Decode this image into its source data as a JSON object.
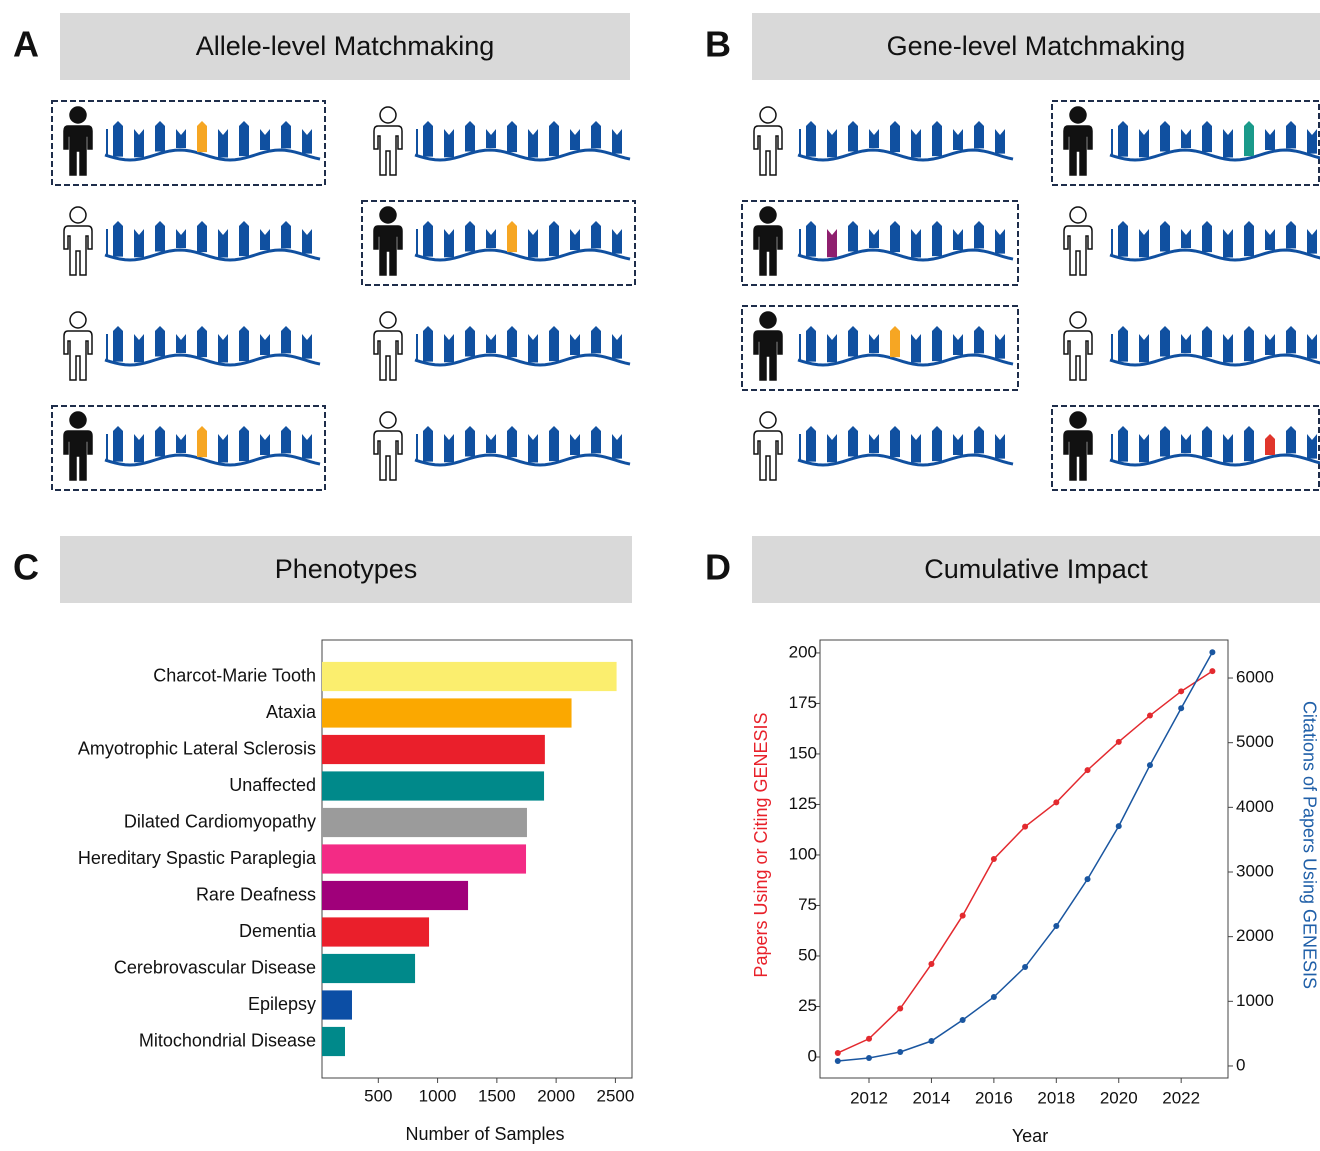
{
  "diagrams": [
    {
      "letter": "A",
      "title": "Allele-level Matchmaking"
    },
    {
      "letter": "B",
      "title": "Gene-level Matchmaking"
    }
  ],
  "chart_data": [
    {
      "type": "barh",
      "letter": "C",
      "title": "Phenotypes",
      "xlabel": "Number of Samples",
      "categories": [
        "Charcot-Marie Tooth",
        "Ataxia",
        "Amyotrophic Lateral Sclerosis",
        "Unaffected",
        "Dilated Cardiomyopathy",
        "Hereditary Spastic Paraplegia",
        "Rare Deafness",
        "Dementia",
        "Cerebrovascular Disease",
        "Epilepsy",
        "Mitochondrial Disease"
      ],
      "values": [
        2510,
        2130,
        1905,
        1898,
        1754,
        1746,
        1257,
        928,
        810,
        278,
        219
      ],
      "colors": [
        "#fbee6e",
        "#fba800",
        "#ea1f2b",
        "#00898a",
        "#9b9b9b",
        "#f32b85",
        "#a0007a",
        "#ea1f2b",
        "#00898a",
        "#0c4ea5",
        "#00898a"
      ],
      "xlim": [
        25,
        2640
      ],
      "xticks": [
        500,
        1000,
        1500,
        2000,
        2500
      ]
    },
    {
      "type": "line",
      "letter": "D",
      "title": "Cumulative Impact",
      "xlabel": "Year",
      "ylabel": "Papers Using or Citing GENESIS",
      "y2label": "Citations of Papers Using GENESIS",
      "x": [
        2011,
        2012,
        2013,
        2014,
        2015,
        2016,
        2017,
        2018,
        2019,
        2020,
        2021,
        2022,
        2023
      ],
      "xlim": [
        2010.43,
        2023.5
      ],
      "xticks": [
        2012,
        2014,
        2016,
        2018,
        2020,
        2022
      ],
      "ylim": [
        -10.4,
        206.4
      ],
      "yticks": [
        0,
        25,
        50,
        75,
        100,
        125,
        150,
        175,
        200
      ],
      "y2lim": [
        -186,
        6588
      ],
      "y2ticks": [
        0,
        1000,
        2000,
        3000,
        4000,
        5000,
        6000
      ],
      "ylabel_color": "#e8212a",
      "y2label_color": "#1f5fa8",
      "series": [
        {
          "color": "#e32a2f",
          "values": [
            2,
            9,
            24,
            46,
            70,
            98,
            114,
            126,
            142,
            156,
            169,
            181,
            191
          ]
        },
        {
          "color": "#1a56a0",
          "axis": "y2",
          "values": [
            77,
            124,
            216,
            386,
            711,
            1067,
            1530,
            2164,
            2890,
            3709,
            4652,
            5533,
            6399
          ]
        }
      ]
    }
  ]
}
